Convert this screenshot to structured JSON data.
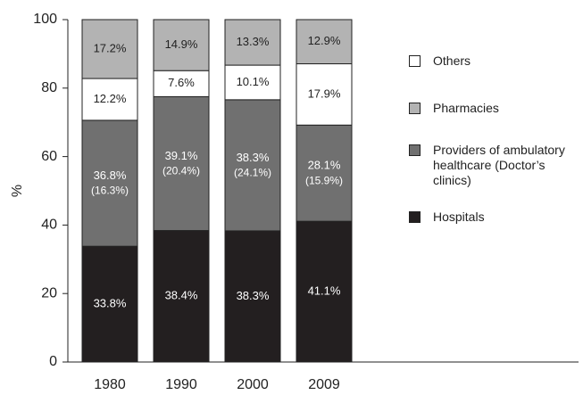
{
  "chart_data": {
    "type": "stacked_bar",
    "ylabel": "%",
    "categories": [
      "1980",
      "1990",
      "2000",
      "2009"
    ],
    "ylim": [
      0,
      100
    ],
    "yticks": [
      0,
      20,
      40,
      60,
      80,
      100
    ],
    "series": [
      {
        "name": "Hospitals",
        "color": "#231f20",
        "values": [
          33.8,
          38.4,
          38.3,
          41.1
        ],
        "value_labels": [
          "33.8%",
          "38.4%",
          "38.3%",
          "41.1%"
        ]
      },
      {
        "name": "Providers of ambulatory healthcare (Doctor’s clinics)",
        "color": "#707070",
        "values": [
          36.8,
          39.1,
          38.3,
          28.1
        ],
        "value_labels": [
          "36.8%",
          "39.1%",
          "38.3%",
          "28.1%"
        ],
        "sub_labels": [
          "(16.3%)",
          "(20.4%)",
          "(24.1%)",
          "(15.9%)"
        ]
      },
      {
        "name": "Others",
        "color": "#ffffff",
        "values": [
          12.2,
          7.6,
          10.1,
          17.9
        ],
        "value_labels": [
          "12.2%",
          "7.6%",
          "10.1%",
          "17.9%"
        ]
      },
      {
        "name": "Pharmacies",
        "color": "#b3b3b3",
        "values": [
          17.2,
          14.9,
          13.3,
          12.9
        ],
        "value_labels": [
          "17.2%",
          "14.9%",
          "13.3%",
          "12.9%"
        ]
      }
    ],
    "legend_order": [
      2,
      3,
      1,
      0
    ]
  }
}
